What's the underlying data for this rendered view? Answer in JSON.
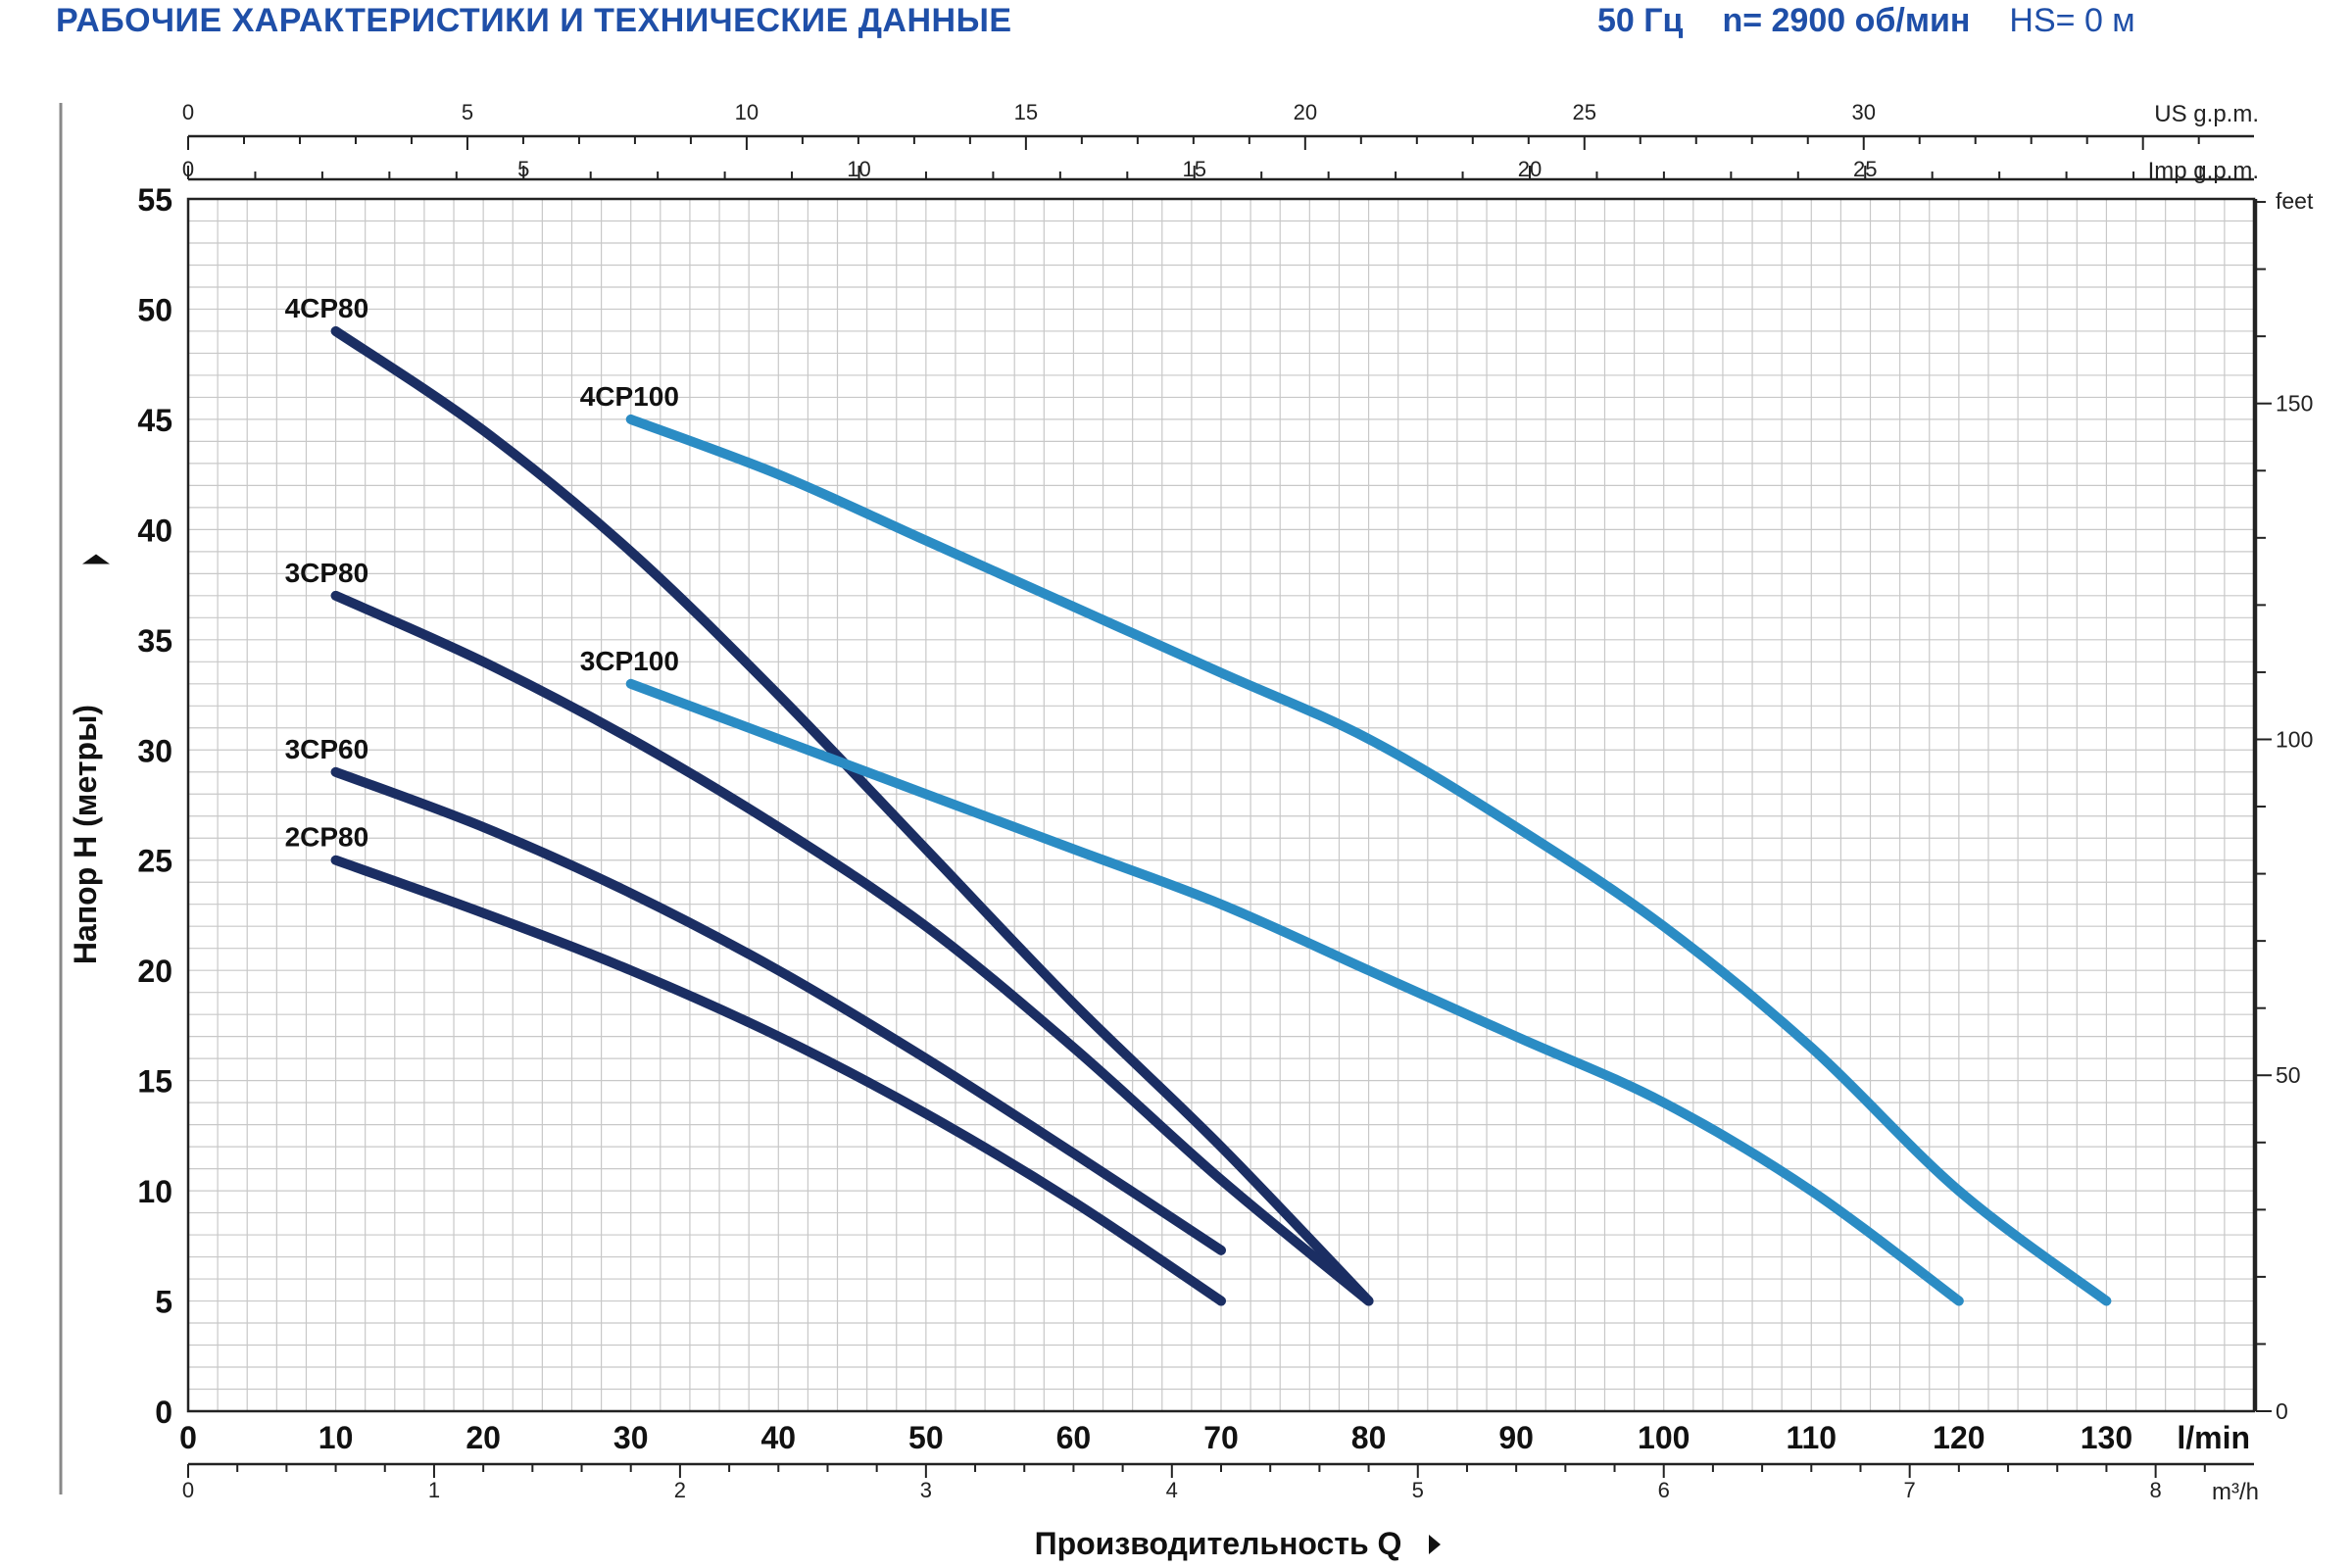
{
  "header": {
    "title": "РАБОЧИЕ ХАРАКТЕРИСТИКИ И ТЕХНИЧЕСКИЕ ДАННЫЕ",
    "frequency": "50 Гц",
    "speed": "n= 2900 об/мин",
    "hs": "HS= 0 м"
  },
  "colors": {
    "dark_curve": "#1b2e63",
    "light_curve": "#2b8cc4",
    "header_text": "#1f4fa8",
    "grid": "#c8c8c8",
    "axis": "#222222"
  },
  "chart_data": {
    "type": "line",
    "title": "",
    "xlabel": "Производительность Q",
    "ylabel": "Напор H (метры)",
    "x_unit": "l/min",
    "xlim": [
      0,
      140
    ],
    "ylim": [
      0,
      55
    ],
    "grid": true,
    "x_ticks": [
      0,
      10,
      20,
      30,
      40,
      50,
      60,
      70,
      80,
      90,
      100,
      110,
      120,
      130
    ],
    "y_ticks": [
      0,
      5,
      10,
      15,
      20,
      25,
      30,
      35,
      40,
      45,
      50,
      55
    ],
    "secondary_axes": {
      "us_gpm": {
        "label": "US g.p.m.",
        "ticks": [
          0,
          5,
          10,
          15,
          20,
          25,
          30
        ]
      },
      "imp_gpm": {
        "label": "Imp g.p.m.",
        "ticks": [
          0,
          5,
          10,
          15,
          20,
          25
        ]
      },
      "m3h": {
        "label": "m³/h",
        "ticks": [
          0,
          1,
          2,
          3,
          4,
          5,
          6,
          7,
          8
        ]
      },
      "feet": {
        "label": "feet",
        "ticks": [
          0,
          50,
          100,
          150
        ]
      }
    },
    "series": [
      {
        "name": "4CP80",
        "color_key": "dark_curve",
        "points": [
          [
            10,
            49
          ],
          [
            20,
            44.5
          ],
          [
            30,
            39
          ],
          [
            40,
            32.5
          ],
          [
            50,
            25.5
          ],
          [
            60,
            18.5
          ],
          [
            70,
            12
          ],
          [
            80,
            5
          ]
        ]
      },
      {
        "name": "3CP80",
        "color_key": "dark_curve",
        "points": [
          [
            10,
            37
          ],
          [
            20,
            34
          ],
          [
            30,
            30.5
          ],
          [
            40,
            26.5
          ],
          [
            50,
            22
          ],
          [
            60,
            16.5
          ],
          [
            70,
            10.5
          ],
          [
            80,
            5
          ]
        ]
      },
      {
        "name": "3CP60",
        "color_key": "dark_curve",
        "points": [
          [
            10,
            29
          ],
          [
            20,
            26.5
          ],
          [
            30,
            23.5
          ],
          [
            40,
            20
          ],
          [
            50,
            16
          ],
          [
            60,
            11.7
          ],
          [
            70,
            7.3
          ]
        ]
      },
      {
        "name": "2CP80",
        "color_key": "dark_curve",
        "points": [
          [
            10,
            25
          ],
          [
            20,
            22.6
          ],
          [
            30,
            20
          ],
          [
            40,
            17
          ],
          [
            50,
            13.5
          ],
          [
            60,
            9.5
          ],
          [
            70,
            5
          ]
        ]
      },
      {
        "name": "4CP100",
        "color_key": "light_curve",
        "points": [
          [
            30,
            45
          ],
          [
            40,
            42.5
          ],
          [
            50,
            39.5
          ],
          [
            60,
            36.5
          ],
          [
            70,
            33.5
          ],
          [
            80,
            30.5
          ],
          [
            90,
            26.5
          ],
          [
            100,
            22
          ],
          [
            110,
            16.5
          ],
          [
            120,
            10
          ],
          [
            130,
            5
          ]
        ]
      },
      {
        "name": "3CP100",
        "color_key": "light_curve",
        "points": [
          [
            30,
            33
          ],
          [
            40,
            30.5
          ],
          [
            50,
            28
          ],
          [
            60,
            25.5
          ],
          [
            70,
            23
          ],
          [
            80,
            20
          ],
          [
            90,
            17
          ],
          [
            100,
            14
          ],
          [
            110,
            10
          ],
          [
            120,
            5
          ]
        ]
      }
    ]
  }
}
